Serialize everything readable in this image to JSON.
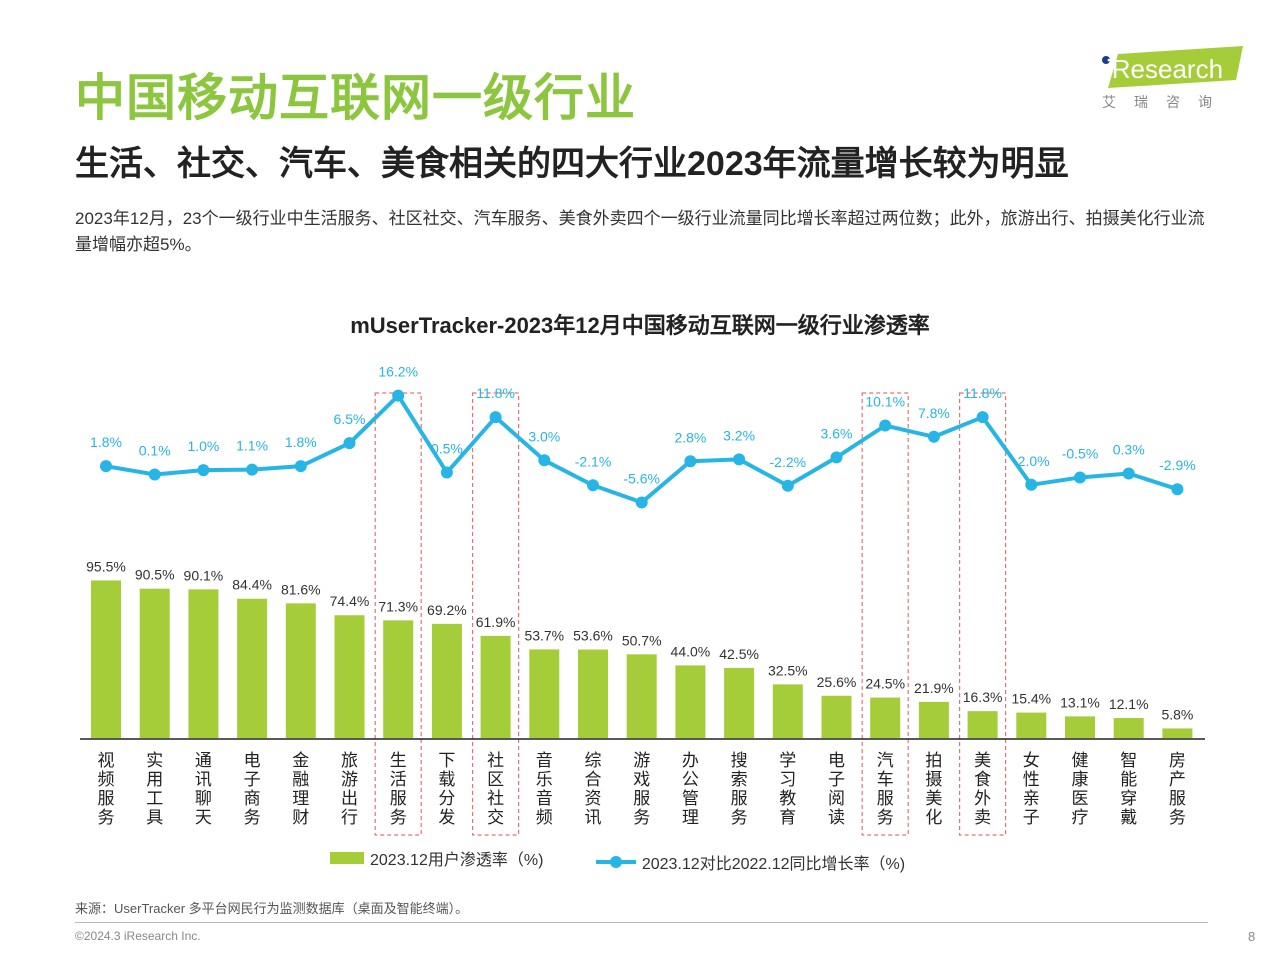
{
  "header": {
    "title": "中国移动互联网一级行业",
    "subtitle": "生活、社交、汽车、美食相关的四大行业2023年流量增长较为明显",
    "description": "2023年12月，23个一级行业中生活服务、社区社交、汽车服务、美食外卖四个一级行业流量同比增长率超过两位数；此外，旅游出行、拍摄美化行业流量增幅亦超5%。"
  },
  "logo": {
    "text": "iResearch",
    "chinese": "艾瑞咨询"
  },
  "colors": {
    "brand_green": "#8cc63f",
    "bar": "#a5cd39",
    "line": "#27b5e6",
    "highlight_box": "#e57373"
  },
  "chart_data": {
    "type": "bar",
    "title": "mUserTracker-2023年12月中国移动互联网一级行业渗透率",
    "categories": [
      "视频服务",
      "实用工具",
      "通讯聊天",
      "电子商务",
      "金融理财",
      "旅游出行",
      "生活服务",
      "下载分发",
      "社区社交",
      "音乐音频",
      "综合资讯",
      "游戏服务",
      "办公管理",
      "搜索服务",
      "学习教育",
      "电子阅读",
      "汽车服务",
      "拍摄美化",
      "美食外卖",
      "女性亲子",
      "健康医疗",
      "智能穿戴",
      "房产服务"
    ],
    "series": [
      {
        "name": "2023.12用户渗透率（%)",
        "type": "bar",
        "values": [
          95.5,
          90.5,
          90.1,
          84.4,
          81.6,
          74.4,
          71.3,
          69.2,
          61.9,
          53.7,
          53.6,
          50.7,
          44.0,
          42.5,
          32.5,
          25.6,
          24.5,
          21.9,
          16.3,
          15.4,
          13.1,
          12.1,
          5.8
        ]
      },
      {
        "name": "2023.12对比2022.12同比增长率（%)",
        "type": "line",
        "values": [
          1.8,
          0.1,
          1.0,
          1.1,
          1.8,
          6.5,
          16.2,
          0.5,
          11.8,
          3.0,
          -2.1,
          -5.6,
          2.8,
          3.2,
          -2.2,
          3.6,
          10.1,
          7.8,
          11.8,
          -2.0,
          -0.5,
          0.3,
          -2.9
        ]
      }
    ],
    "highlighted_categories": [
      "生活服务",
      "社区社交",
      "汽车服务",
      "美食外卖"
    ],
    "legend_position": "bottom",
    "grid": false
  },
  "footer": {
    "source": "来源：UserTracker 多平台网民行为监测数据库（桌面及智能终端）。",
    "copyright": "©2024.3 iResearch Inc.",
    "page_number": "8"
  }
}
